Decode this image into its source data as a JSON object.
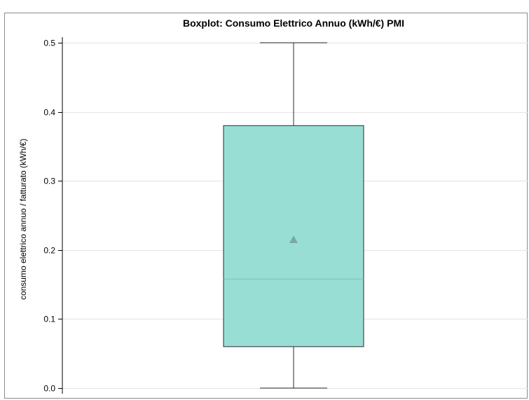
{
  "chart_data": {
    "type": "box",
    "title": "Boxplot: Consumo Elettrico Annuo (kWh/€) PMI",
    "xlabel": "",
    "ylabel": "consumo elettrico annuo / fatturato (kWh/€)",
    "ylim": [
      0,
      0.5
    ],
    "yticks": [
      "0.0",
      "0.1",
      "0.2",
      "0.3",
      "0.4",
      "0.5"
    ],
    "grid": true,
    "legend": "none",
    "series": [
      {
        "min": 0.0,
        "q1": 0.06,
        "median": 0.158,
        "mean": 0.215,
        "q3": 0.38,
        "max": 0.5
      }
    ],
    "colors": {
      "box_fill": "#98ded4",
      "box_stroke": "#2b2b2b",
      "median": "#7fbdb5",
      "mean_marker": "#7aa8a8",
      "grid": "#e3e3e3",
      "frame": "#8c8c8c"
    }
  }
}
